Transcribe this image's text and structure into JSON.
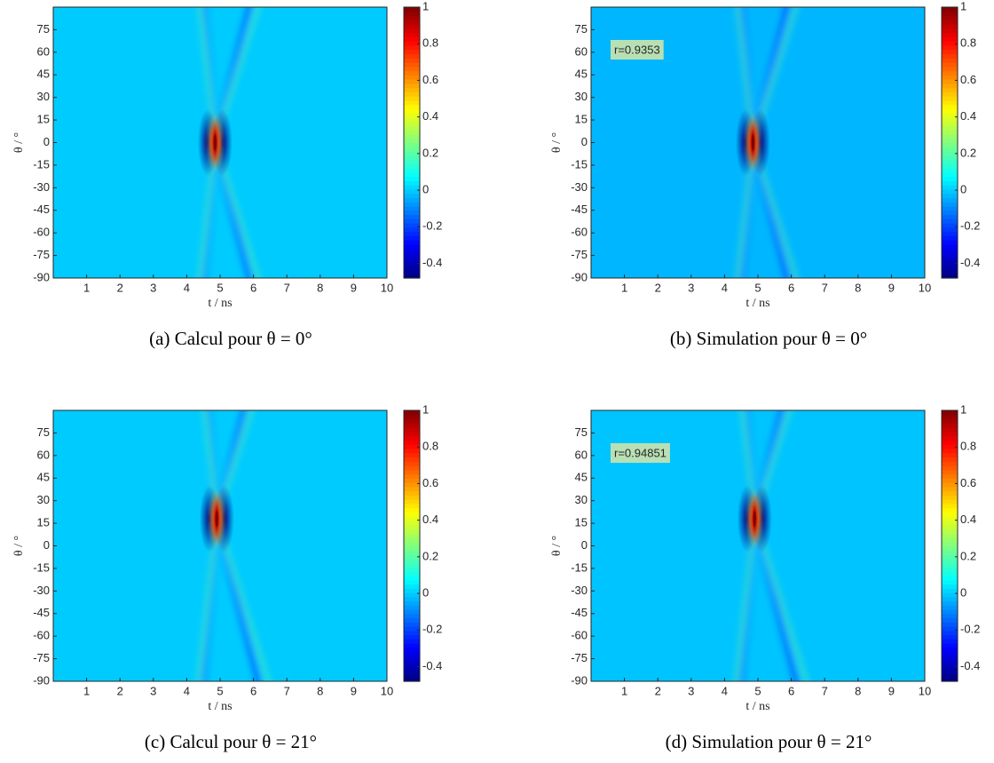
{
  "chart_data": [
    {
      "type": "heatmap",
      "caption": "(a) Calcul pour θ = 0°",
      "xlabel": "t / ns",
      "ylabel": "θ / °",
      "xlim": [
        0,
        10
      ],
      "xticks": [
        1,
        2,
        3,
        4,
        5,
        6,
        7,
        8,
        9,
        10
      ],
      "ylim": [
        -90,
        90
      ],
      "yticks": [
        -90,
        -75,
        -60,
        -45,
        -30,
        -15,
        0,
        15,
        30,
        45,
        60,
        75
      ],
      "colormap": "jet",
      "zlim": [
        -0.48,
        1
      ],
      "zticks": [
        -0.4,
        -0.2,
        0,
        0.2,
        0.4,
        0.6,
        0.8,
        1
      ],
      "background": 0,
      "peak": {
        "x": 4.85,
        "y": 0,
        "value": 1
      }
    },
    {
      "type": "heatmap",
      "caption": "(b) Simulation pour θ = 0°",
      "xlabel": "t / ns",
      "ylabel": "θ / °",
      "xlim": [
        0,
        10
      ],
      "xticks": [
        1,
        2,
        3,
        4,
        5,
        6,
        7,
        8,
        9,
        10
      ],
      "ylim": [
        -90,
        90
      ],
      "yticks": [
        -90,
        -75,
        -60,
        -45,
        -30,
        -15,
        0,
        15,
        30,
        45,
        60,
        75
      ],
      "colormap": "jet",
      "zlim": [
        -0.48,
        1
      ],
      "zticks": [
        -0.4,
        -0.2,
        0,
        0.2,
        0.4,
        0.6,
        0.8,
        1
      ],
      "background": -0.03,
      "peak": {
        "x": 4.85,
        "y": 0,
        "value": 1
      },
      "annotation": "r=0.9353"
    },
    {
      "type": "heatmap",
      "caption": "(c) Calcul pour θ = 21°",
      "xlabel": "t / ns",
      "ylabel": "θ / °",
      "xlim": [
        0,
        10
      ],
      "xticks": [
        1,
        2,
        3,
        4,
        5,
        6,
        7,
        8,
        9,
        10
      ],
      "ylim": [
        -90,
        90
      ],
      "yticks": [
        -90,
        -75,
        -60,
        -45,
        -30,
        -15,
        0,
        15,
        30,
        45,
        60,
        75
      ],
      "colormap": "jet",
      "zlim": [
        -0.48,
        1
      ],
      "zticks": [
        -0.4,
        -0.2,
        0,
        0.2,
        0.4,
        0.6,
        0.8,
        1
      ],
      "background": 0,
      "peak": {
        "x": 4.9,
        "y": 18,
        "value": 1
      }
    },
    {
      "type": "heatmap",
      "caption": "(d) Simulation pour θ = 21°",
      "xlabel": "t / ns",
      "ylabel": "θ / °",
      "xlim": [
        0,
        10
      ],
      "xticks": [
        1,
        2,
        3,
        4,
        5,
        6,
        7,
        8,
        9,
        10
      ],
      "ylim": [
        -90,
        90
      ],
      "yticks": [
        -90,
        -75,
        -60,
        -45,
        -30,
        -15,
        0,
        15,
        30,
        45,
        60,
        75
      ],
      "colormap": "jet",
      "zlim": [
        -0.48,
        1
      ],
      "zticks": [
        -0.4,
        -0.2,
        0,
        0.2,
        0.4,
        0.6,
        0.8,
        1
      ],
      "background": -0.01,
      "peak": {
        "x": 4.9,
        "y": 18,
        "value": 1
      },
      "annotation": "r=0.94851"
    }
  ]
}
